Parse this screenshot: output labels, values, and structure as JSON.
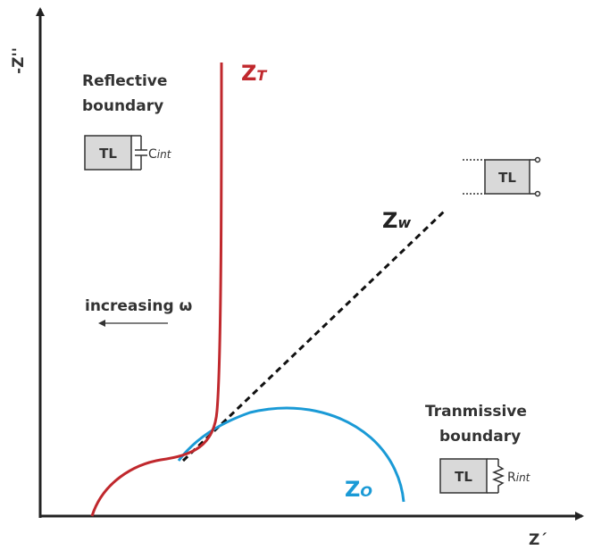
{
  "axes": {
    "y_label": "-Z''",
    "x_label": "Z´"
  },
  "curves": {
    "zt": {
      "main": "Z",
      "sub": "T"
    },
    "zw": {
      "main": "Z",
      "sub": "w"
    },
    "zo": {
      "main": "Z",
      "sub": "O"
    }
  },
  "annotation": "increasing ω",
  "reflective": {
    "title_lines": [
      "Reflective",
      "boundary"
    ],
    "block": "TL",
    "element": "C",
    "element_sub": "int"
  },
  "transmissive": {
    "title_lines": [
      "Tranmissive",
      "boundary"
    ],
    "block": "TL",
    "element": "R",
    "element_sub": "int"
  },
  "open_circuit": {
    "block": "TL"
  }
}
